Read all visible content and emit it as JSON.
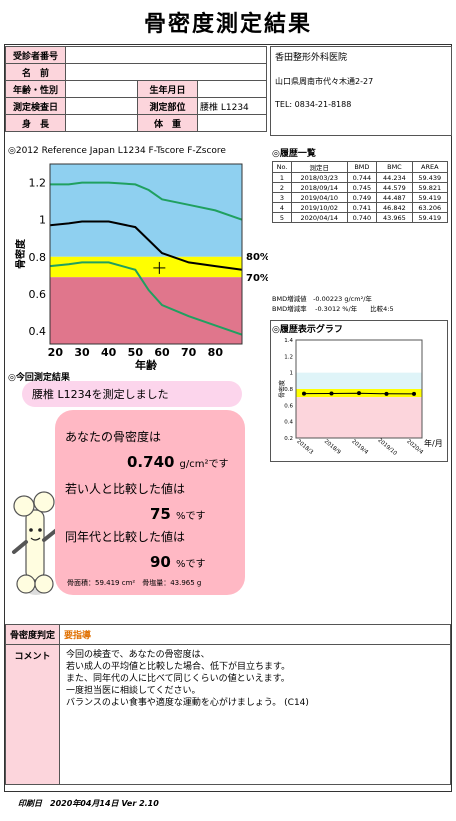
{
  "title": "骨密度測定結果",
  "header": {
    "patient_id_label": "受診者番号",
    "name_label": "名　前",
    "age_sex_label": "年齢・性別",
    "birth_label": "生年月日",
    "exam_date_label": "測定検査日",
    "site_label": "測定部位",
    "site_value": "腰椎 L1234",
    "height_label": "身　長",
    "weight_label": "体　重"
  },
  "clinic": {
    "name": "香田整形外科医院",
    "address": "山口県周南市代々木通2-27",
    "tel": "TEL: 0834-21-8188"
  },
  "reference_chart": {
    "caption": "◎2012 Reference Japan L1234 F-Tscore F-Zscore",
    "ylabel": "骨密度",
    "xlabel": "年齢",
    "pct80": "80%",
    "pct70": "70%"
  },
  "chart_data": [
    {
      "type": "line",
      "title": "2012 Reference Japan L1234 F-Tscore F-Zscore",
      "xlabel": "年齢",
      "ylabel": "骨密度",
      "xlim": [
        18,
        90
      ],
      "ylim": [
        0.33,
        1.3
      ],
      "x_ticks": [
        20,
        30,
        40,
        50,
        60,
        70,
        80
      ],
      "y_ticks": [
        0.4,
        0.6,
        0.8,
        1,
        1.2
      ],
      "bands": [
        {
          "name": "80%",
          "y0": 0.78,
          "y1": 0.8,
          "color": "#ffff00"
        },
        {
          "name": "70%",
          "y0": 0.69,
          "y1": 0.78,
          "color": "#ffff00"
        }
      ],
      "series": [
        {
          "color": "#20a060",
          "x": [
            18,
            25,
            30,
            40,
            50,
            55,
            60,
            70,
            80,
            90
          ],
          "y": [
            1.19,
            1.19,
            1.2,
            1.2,
            1.19,
            1.16,
            1.11,
            1.08,
            1.05,
            1.0
          ]
        },
        {
          "color": "#000000",
          "x": [
            18,
            25,
            30,
            40,
            50,
            55,
            60,
            70,
            80,
            90
          ],
          "y": [
            0.97,
            0.98,
            0.99,
            0.99,
            0.96,
            0.89,
            0.82,
            0.77,
            0.75,
            0.73
          ]
        },
        {
          "color": "#20a060",
          "x": [
            18,
            25,
            30,
            40,
            50,
            55,
            60,
            70,
            80,
            90
          ],
          "y": [
            0.75,
            0.76,
            0.77,
            0.77,
            0.73,
            0.62,
            0.54,
            0.48,
            0.43,
            0.38
          ]
        }
      ],
      "marker": {
        "x": 59,
        "y": 0.74
      }
    },
    {
      "type": "line",
      "title": "履歴表示グラフ",
      "ylabel": "骨密度",
      "xlabel": "年/月",
      "categories": [
        "2018/3",
        "2018/9",
        "2019/4",
        "2019/10",
        "2020/4"
      ],
      "ylim": [
        0.2,
        1.4
      ],
      "y_ticks": [
        0.2,
        0.4,
        0.6,
        0.8,
        1,
        1.2,
        1.4
      ],
      "values": [
        0.744,
        0.745,
        0.749,
        0.741,
        0.74
      ]
    }
  ],
  "history": {
    "title": "◎履歴一覧",
    "columns": [
      "No.",
      "測定日",
      "BMD",
      "BMC",
      "AREA"
    ],
    "rows": [
      [
        "1",
        "2018/03/23",
        "0.744",
        "44.234",
        "59.439"
      ],
      [
        "2",
        "2018/09/14",
        "0.745",
        "44.579",
        "59.821"
      ],
      [
        "3",
        "2019/04/10",
        "0.749",
        "44.487",
        "59.419"
      ],
      [
        "4",
        "2019/10/02",
        "0.741",
        "46.842",
        "63.206"
      ],
      [
        "5",
        "2020/04/14",
        "0.740",
        "43.965",
        "59.419"
      ]
    ],
    "stat1": "BMD増減値　-0.00223 g/cm²/年",
    "stat2": "BMD増減率　 -0.3012 %/年　　比較4:5",
    "graph_title": "◎履歴表示グラフ",
    "graph_ylabel": "骨密度",
    "graph_xunit": "年/月"
  },
  "result": {
    "title": "◎今回測定結果",
    "site_msg": "腰椎 L1234を測定しました",
    "line1": "あなたの骨密度は",
    "bmd_value": "0.740",
    "bmd_unit": "g/cm²です",
    "line2": "若い人と比較した値は",
    "yam_value": "75",
    "yam_unit": "%です",
    "line3": "同年代と比較した値は",
    "age_value": "90",
    "age_unit": "%です",
    "area_text": "骨面積：59.419 cm²　骨塩量：43.965 g"
  },
  "judgement": {
    "label": "骨密度判定",
    "value": "要指導",
    "value_color": "#e07000"
  },
  "comment": {
    "label": "コメント",
    "lines": [
      "今回の検査で、あなたの骨密度は、",
      "若い成人の平均値と比較した場合、低下が目立ちます。",
      "また、同年代の人に比べて同じくらいの値といえます。",
      "一度担当医に相談してください。",
      "バランスのよい食事や適度な運動を心がけましょう。 (C14)"
    ]
  },
  "footer": {
    "print_date": "印刷日　2020年04月14日 Ver 2.10"
  }
}
